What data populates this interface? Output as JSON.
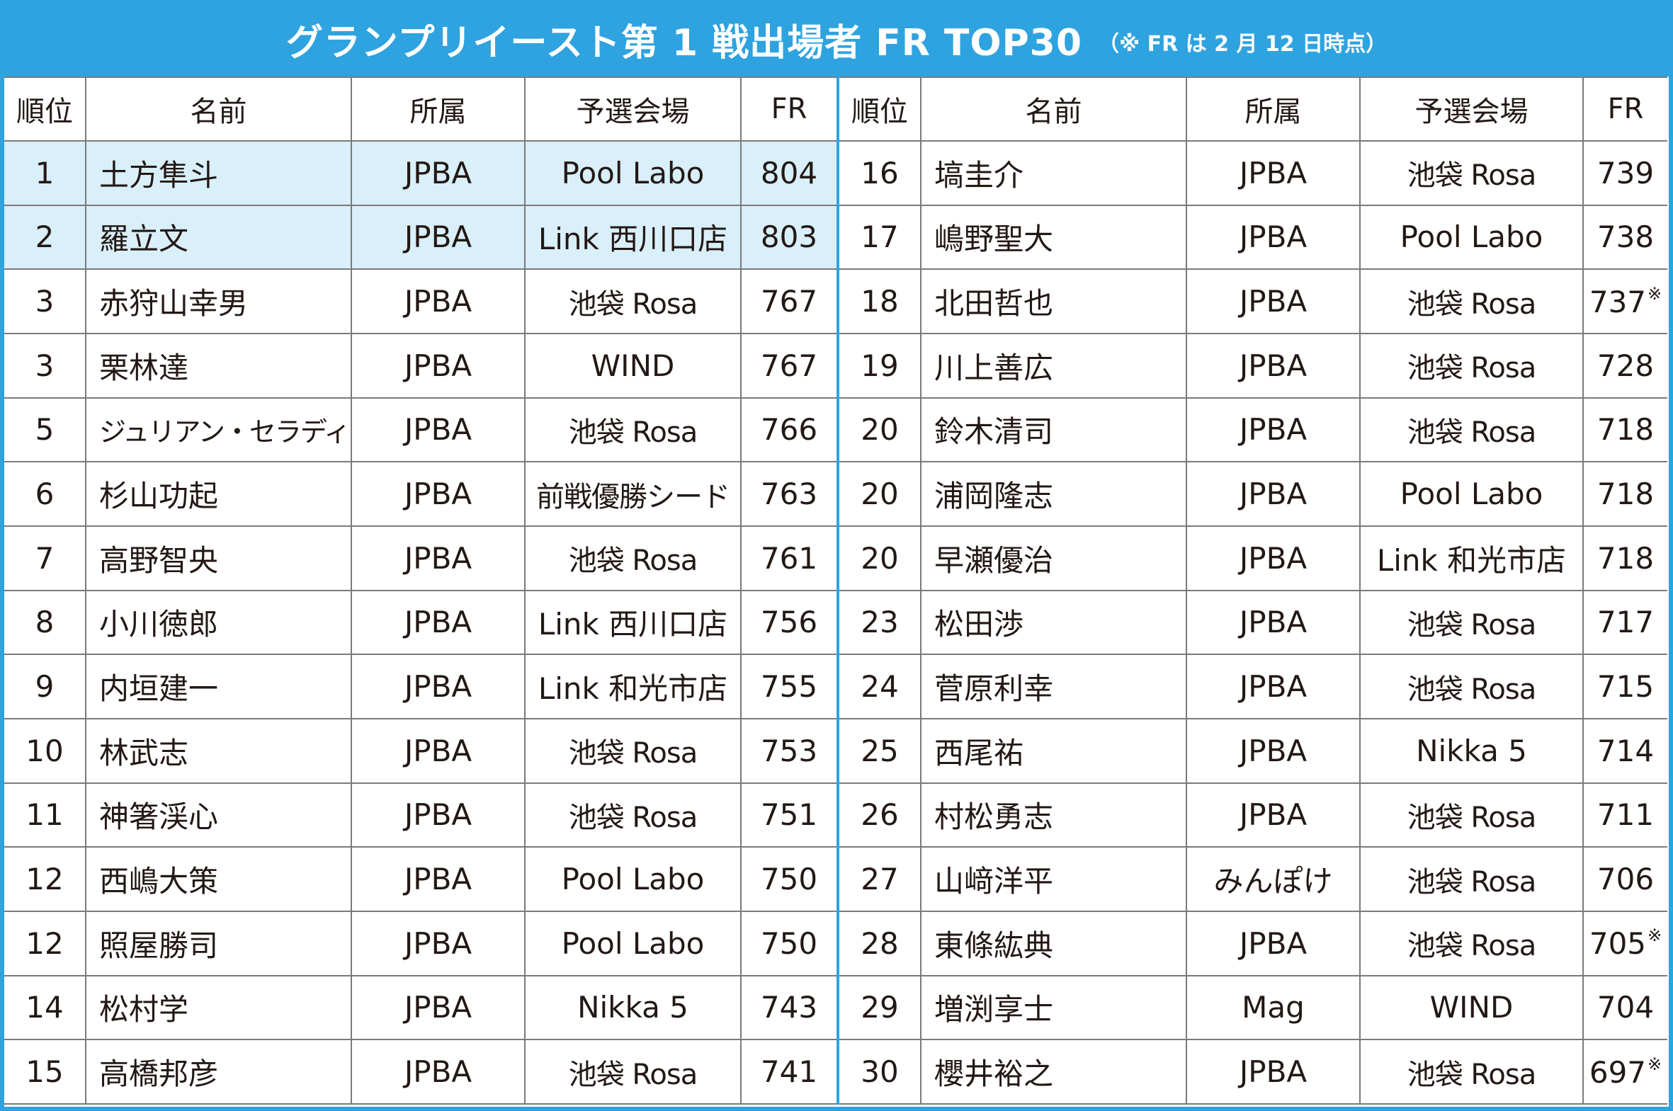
{
  "header": {
    "title": "グランプリイースト第 1 戦出場者 FR TOP30",
    "note": "（※ FR は 2 月 12 日時点）"
  },
  "columns": [
    "順位",
    "名前",
    "所属",
    "予選会場",
    "FR"
  ],
  "rows_left": [
    {
      "rank": "1",
      "name": "土方隼斗",
      "affiliation": "JPBA",
      "venue": "Pool Labo",
      "fr": "804",
      "mark": "",
      "highlight": true
    },
    {
      "rank": "2",
      "name": "羅立文",
      "affiliation": "JPBA",
      "venue": "Link 西川口店",
      "fr": "803",
      "mark": "",
      "highlight": true
    },
    {
      "rank": "3",
      "name": "赤狩山幸男",
      "affiliation": "JPBA",
      "venue": "池袋 Rosa",
      "fr": "767",
      "mark": ""
    },
    {
      "rank": "3",
      "name": "栗林達",
      "affiliation": "JPBA",
      "venue": "WIND",
      "fr": "767",
      "mark": ""
    },
    {
      "rank": "5",
      "name": "ジュリアン・セラディラ",
      "affiliation": "JPBA",
      "venue": "池袋 Rosa",
      "fr": "766",
      "mark": ""
    },
    {
      "rank": "6",
      "name": "杉山功起",
      "affiliation": "JPBA",
      "venue": "前戦優勝シード",
      "fr": "763",
      "mark": ""
    },
    {
      "rank": "7",
      "name": "高野智央",
      "affiliation": "JPBA",
      "venue": "池袋 Rosa",
      "fr": "761",
      "mark": ""
    },
    {
      "rank": "8",
      "name": "小川徳郎",
      "affiliation": "JPBA",
      "venue": "Link 西川口店",
      "fr": "756",
      "mark": ""
    },
    {
      "rank": "9",
      "name": "内垣建一",
      "affiliation": "JPBA",
      "venue": "Link 和光市店",
      "fr": "755",
      "mark": ""
    },
    {
      "rank": "10",
      "name": "林武志",
      "affiliation": "JPBA",
      "venue": "池袋 Rosa",
      "fr": "753",
      "mark": ""
    },
    {
      "rank": "11",
      "name": "神箸渓心",
      "affiliation": "JPBA",
      "venue": "池袋 Rosa",
      "fr": "751",
      "mark": ""
    },
    {
      "rank": "12",
      "name": "西嶋大策",
      "affiliation": "JPBA",
      "venue": "Pool Labo",
      "fr": "750",
      "mark": ""
    },
    {
      "rank": "12",
      "name": "照屋勝司",
      "affiliation": "JPBA",
      "venue": "Pool Labo",
      "fr": "750",
      "mark": ""
    },
    {
      "rank": "14",
      "name": "松村学",
      "affiliation": "JPBA",
      "venue": "Nikka 5",
      "fr": "743",
      "mark": ""
    },
    {
      "rank": "15",
      "name": "高橋邦彦",
      "affiliation": "JPBA",
      "venue": "池袋 Rosa",
      "fr": "741",
      "mark": ""
    }
  ],
  "rows_right": [
    {
      "rank": "16",
      "name": "塙圭介",
      "affiliation": "JPBA",
      "venue": "池袋 Rosa",
      "fr": "739",
      "mark": ""
    },
    {
      "rank": "17",
      "name": "嶋野聖大",
      "affiliation": "JPBA",
      "venue": "Pool Labo",
      "fr": "738",
      "mark": ""
    },
    {
      "rank": "18",
      "name": "北田哲也",
      "affiliation": "JPBA",
      "venue": "池袋 Rosa",
      "fr": "737",
      "mark": "※"
    },
    {
      "rank": "19",
      "name": "川上善広",
      "affiliation": "JPBA",
      "venue": "池袋 Rosa",
      "fr": "728",
      "mark": ""
    },
    {
      "rank": "20",
      "name": "鈴木清司",
      "affiliation": "JPBA",
      "venue": "池袋 Rosa",
      "fr": "718",
      "mark": ""
    },
    {
      "rank": "20",
      "name": "浦岡隆志",
      "affiliation": "JPBA",
      "venue": "Pool Labo",
      "fr": "718",
      "mark": ""
    },
    {
      "rank": "20",
      "name": "早瀬優治",
      "affiliation": "JPBA",
      "venue": "Link 和光市店",
      "fr": "718",
      "mark": ""
    },
    {
      "rank": "23",
      "name": "松田渉",
      "affiliation": "JPBA",
      "venue": "池袋 Rosa",
      "fr": "717",
      "mark": ""
    },
    {
      "rank": "24",
      "name": "菅原利幸",
      "affiliation": "JPBA",
      "venue": "池袋 Rosa",
      "fr": "715",
      "mark": ""
    },
    {
      "rank": "25",
      "name": "西尾祐",
      "affiliation": "JPBA",
      "venue": "Nikka 5",
      "fr": "714",
      "mark": ""
    },
    {
      "rank": "26",
      "name": "村松勇志",
      "affiliation": "JPBA",
      "venue": "池袋 Rosa",
      "fr": "711",
      "mark": ""
    },
    {
      "rank": "27",
      "name": "山﨑洋平",
      "affiliation": "みんぽけ",
      "venue": "池袋 Rosa",
      "fr": "706",
      "mark": ""
    },
    {
      "rank": "28",
      "name": "東條紘典",
      "affiliation": "JPBA",
      "venue": "池袋 Rosa",
      "fr": "705",
      "mark": "※"
    },
    {
      "rank": "29",
      "name": "増渕享士",
      "affiliation": "Mag",
      "venue": "WIND",
      "fr": "704",
      "mark": ""
    },
    {
      "rank": "30",
      "name": "櫻井裕之",
      "affiliation": "JPBA",
      "venue": "池袋 Rosa",
      "fr": "697",
      "mark": "※"
    }
  ],
  "colors": {
    "accent": "#2ea3e0",
    "highlight": "#d9eff9",
    "grid": "#7a7a7a"
  }
}
